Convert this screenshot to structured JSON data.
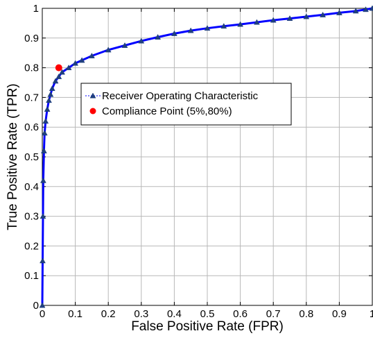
{
  "chart_data": {
    "type": "line",
    "title": "",
    "xlabel": "False Positive Rate (FPR)",
    "ylabel": "True Positive Rate (TPR)",
    "xlim": [
      0,
      1
    ],
    "ylim": [
      0,
      1
    ],
    "xticks": [
      "0",
      "0.1",
      "0.2",
      "0.3",
      "0.4",
      "0.5",
      "0.6",
      "0.7",
      "0.8",
      "0.9",
      "1"
    ],
    "yticks": [
      "0",
      "0.1",
      "0.2",
      "0.3",
      "0.4",
      "0.5",
      "0.6",
      "0.7",
      "0.8",
      "0.9",
      "1"
    ],
    "grid": true,
    "legend_position": "upper-center",
    "series": [
      {
        "name": "Receiver Operating Characteristic",
        "color": "#0000ff",
        "marker": "triangle",
        "marker_color": "#1f3f7f",
        "x": [
          0,
          0.001,
          0.002,
          0.003,
          0.005,
          0.007,
          0.01,
          0.015,
          0.02,
          0.025,
          0.03,
          0.04,
          0.05,
          0.06,
          0.08,
          0.1,
          0.12,
          0.15,
          0.2,
          0.25,
          0.3,
          0.35,
          0.4,
          0.45,
          0.5,
          0.55,
          0.6,
          0.65,
          0.7,
          0.75,
          0.8,
          0.85,
          0.9,
          0.95,
          0.98,
          1.0
        ],
        "y": [
          0,
          0.15,
          0.3,
          0.42,
          0.52,
          0.58,
          0.62,
          0.66,
          0.69,
          0.71,
          0.73,
          0.755,
          0.77,
          0.785,
          0.8,
          0.815,
          0.825,
          0.84,
          0.86,
          0.875,
          0.89,
          0.903,
          0.915,
          0.925,
          0.933,
          0.94,
          0.946,
          0.953,
          0.96,
          0.966,
          0.972,
          0.978,
          0.985,
          0.991,
          0.996,
          1.0
        ]
      },
      {
        "name": "Compliance Point (5%,80%)",
        "color": "#ff0000",
        "marker": "circle",
        "x": [
          0.05
        ],
        "y": [
          0.8
        ]
      }
    ]
  }
}
